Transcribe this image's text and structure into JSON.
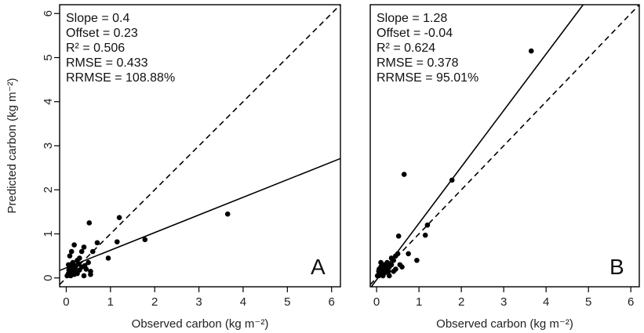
{
  "chart_data": [
    {
      "type": "scatter",
      "panel_label": "A",
      "xlabel": "Observed carbon (kg m⁻²)",
      "ylabel": "Predicted carbon (kg m⁻²)",
      "xlim": [
        -0.15,
        6.2
      ],
      "ylim": [
        -0.2,
        6.2
      ],
      "x_ticks": [
        0,
        1,
        2,
        3,
        4,
        5,
        6
      ],
      "y_ticks": [
        0,
        1,
        2,
        3,
        4,
        5,
        6
      ],
      "stats": [
        "Slope = 0.4",
        "Offset = 0.23",
        "R² = 0.506",
        "RMSE = 0.433",
        "RRMSE = 108.88%"
      ],
      "fit_line": {
        "slope": 0.4,
        "offset": 0.23,
        "style": "solid"
      },
      "reference_line": {
        "slope": 1,
        "offset": 0,
        "style": "dashed"
      },
      "points": [
        [
          0.02,
          0.05
        ],
        [
          0.05,
          0.1
        ],
        [
          0.06,
          0.18
        ],
        [
          0.08,
          0.22
        ],
        [
          0.1,
          0.3
        ],
        [
          0.12,
          0.15
        ],
        [
          0.14,
          0.25
        ],
        [
          0.15,
          0.35
        ],
        [
          0.17,
          0.12
        ],
        [
          0.2,
          0.2
        ],
        [
          0.22,
          0.28
        ],
        [
          0.25,
          0.1
        ],
        [
          0.28,
          0.32
        ],
        [
          0.3,
          0.18
        ],
        [
          0.08,
          0.5
        ],
        [
          0.12,
          0.6
        ],
        [
          0.18,
          0.75
        ],
        [
          0.35,
          0.6
        ],
        [
          0.4,
          0.7
        ],
        [
          0.45,
          0.2
        ],
        [
          0.5,
          0.35
        ],
        [
          0.52,
          1.25
        ],
        [
          0.55,
          0.15
        ],
        [
          0.6,
          0.6
        ],
        [
          0.7,
          0.8
        ],
        [
          0.55,
          0.08
        ],
        [
          0.95,
          0.45
        ],
        [
          1.15,
          0.82
        ],
        [
          1.2,
          1.37
        ],
        [
          1.78,
          0.87
        ],
        [
          3.65,
          1.45
        ],
        [
          0.35,
          0.25
        ],
        [
          0.42,
          0.28
        ],
        [
          0.3,
          0.45
        ],
        [
          0.25,
          0.4
        ],
        [
          0.05,
          0.3
        ],
        [
          0.1,
          0.05
        ],
        [
          0.18,
          0.08
        ],
        [
          0.4,
          0.05
        ]
      ]
    },
    {
      "type": "scatter",
      "panel_label": "B",
      "xlabel": "Observed carbon (kg m⁻²)",
      "ylabel": "",
      "xlim": [
        -0.15,
        6.2
      ],
      "ylim": [
        -0.2,
        6.2
      ],
      "x_ticks": [
        0,
        1,
        2,
        3,
        4,
        5,
        6
      ],
      "y_ticks": [],
      "stats": [
        "Slope = 1.28",
        "Offset = -0.04",
        "R² = 0.624",
        "RMSE = 0.378",
        "RRMSE = 95.01%"
      ],
      "fit_line": {
        "slope": 1.28,
        "offset": -0.04,
        "style": "solid"
      },
      "reference_line": {
        "slope": 1,
        "offset": 0,
        "style": "dashed"
      },
      "points": [
        [
          0.02,
          0.05
        ],
        [
          0.05,
          0.15
        ],
        [
          0.06,
          0.2
        ],
        [
          0.08,
          0.1
        ],
        [
          0.1,
          0.25
        ],
        [
          0.12,
          0.08
        ],
        [
          0.15,
          0.18
        ],
        [
          0.18,
          0.3
        ],
        [
          0.2,
          0.12
        ],
        [
          0.22,
          0.22
        ],
        [
          0.25,
          0.35
        ],
        [
          0.28,
          0.15
        ],
        [
          0.3,
          0.25
        ],
        [
          0.35,
          0.3
        ],
        [
          0.4,
          0.4
        ],
        [
          0.45,
          0.2
        ],
        [
          0.5,
          0.55
        ],
        [
          0.52,
          0.95
        ],
        [
          0.55,
          0.3
        ],
        [
          0.6,
          0.25
        ],
        [
          0.65,
          2.35
        ],
        [
          0.75,
          0.55
        ],
        [
          0.95,
          0.4
        ],
        [
          1.15,
          0.97
        ],
        [
          1.2,
          1.2
        ],
        [
          1.78,
          2.22
        ],
        [
          3.65,
          5.15
        ],
        [
          0.4,
          0.15
        ],
        [
          0.3,
          0.05
        ],
        [
          0.1,
          0.35
        ],
        [
          0.05,
          0.05
        ],
        [
          0.15,
          0.05
        ],
        [
          0.35,
          0.45
        ],
        [
          0.45,
          0.5
        ]
      ]
    }
  ]
}
